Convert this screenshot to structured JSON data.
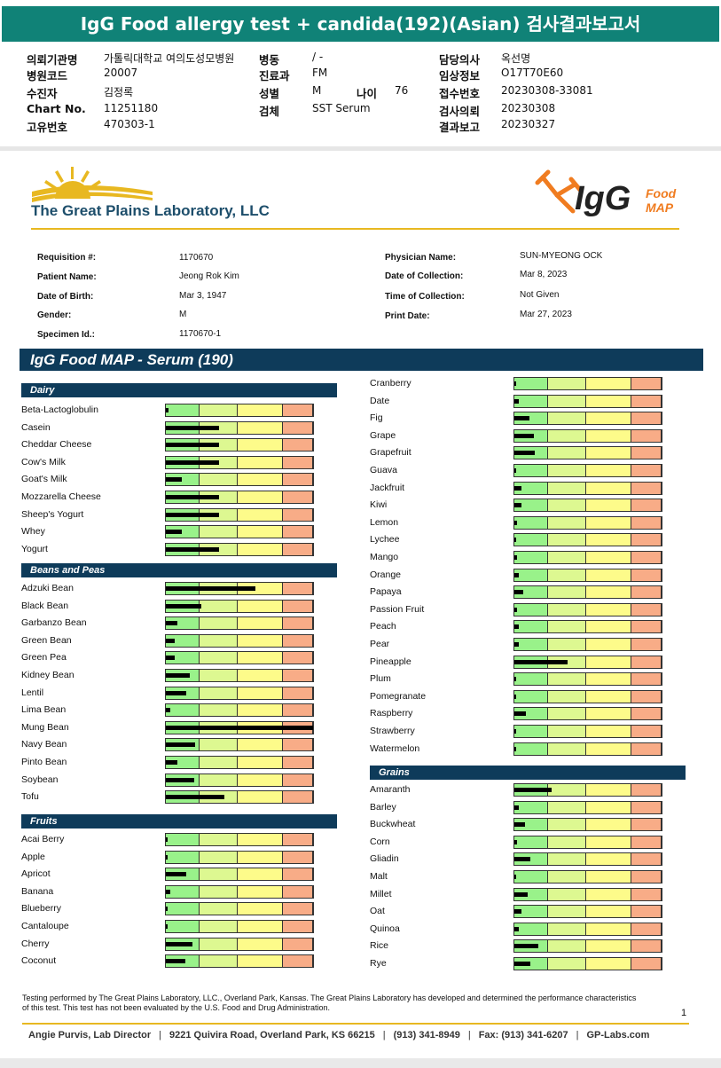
{
  "banner": "IgG Food allergy test + candida(192)(Asian) 검사결과보고서",
  "header": {
    "rows": [
      [
        {
          "l": "의뢰기관명",
          "v": "가톨릭대학교 여의도성모병원"
        },
        {
          "l": "병동",
          "v": "/ -"
        },
        {
          "l": "담당의사",
          "v": "옥선명"
        }
      ],
      [
        {
          "l": "병원코드",
          "v": "20007"
        },
        {
          "l": "진료과",
          "v": "FM"
        },
        {
          "l": "임상정보",
          "v": "O17T70E60"
        }
      ],
      [
        {
          "l": "수진자",
          "v": "김정록"
        },
        {
          "l": "성별",
          "v": "M"
        },
        {
          "l": "접수번호",
          "v": "20230308-33081"
        }
      ],
      [
        {
          "l": "Chart No.",
          "v": "11251180"
        },
        {
          "l": "검체",
          "v": "SST Serum"
        },
        {
          "l": "검사의뢰",
          "v": "20230308"
        }
      ],
      [
        {
          "l": "고유번호",
          "v": "470303-1"
        },
        {
          "l": "",
          "v": ""
        },
        {
          "l": "결과보고",
          "v": "20230327"
        }
      ]
    ],
    "age_label": "나이",
    "age_value": "76"
  },
  "lab_name": "The Great Plains Laboratory, LLC",
  "igg_logo": {
    "main": "IgG",
    "sub1": "Food",
    "sub2": "MAP"
  },
  "requisition": {
    "left": [
      {
        "l": "Requisition #:",
        "v": "1170670"
      },
      {
        "l": "Patient Name:",
        "v": "Jeong Rok Kim"
      },
      {
        "l": "Date of Birth:",
        "v": "Mar 3, 1947"
      },
      {
        "l": "Gender:",
        "v": "M"
      },
      {
        "l": "Specimen Id.:",
        "v": "1170670-1"
      }
    ],
    "right": [
      {
        "l": "Physician Name:",
        "v": "SUN-MYEONG OCK"
      },
      {
        "l": "Date of Collection:",
        "v": "Mar 8, 2023"
      },
      {
        "l": "Time of Collection:",
        "v": "Not Given"
      },
      {
        "l": "Print Date:",
        "v": "Mar 27, 2023"
      }
    ]
  },
  "section_title": "IgG Food MAP - Serum (190)",
  "categories": [
    {
      "name": "Dairy",
      "items": [
        {
          "name": "Beta-Lactoglobulin",
          "level": 0.02
        },
        {
          "name": "Casein",
          "level": 0.36
        },
        {
          "name": "Cheddar Cheese",
          "level": 0.36
        },
        {
          "name": "Cow's Milk",
          "level": 0.36
        },
        {
          "name": "Goat's Milk",
          "level": 0.11
        },
        {
          "name": "Mozzarella Cheese",
          "level": 0.36
        },
        {
          "name": "Sheep's Yogurt",
          "level": 0.36
        },
        {
          "name": "Whey",
          "level": 0.11
        },
        {
          "name": "Yogurt",
          "level": 0.36
        }
      ]
    },
    {
      "name": "Beans and Peas",
      "items": [
        {
          "name": "Adzuki Bean",
          "level": 0.61
        },
        {
          "name": "Black Bean",
          "level": 0.24
        },
        {
          "name": "Garbanzo Bean",
          "level": 0.08
        },
        {
          "name": "Green Bean",
          "level": 0.06
        },
        {
          "name": "Green Pea",
          "level": 0.06
        },
        {
          "name": "Kidney Bean",
          "level": 0.16
        },
        {
          "name": "Lentil",
          "level": 0.14
        },
        {
          "name": "Lima Bean",
          "level": 0.03
        },
        {
          "name": "Mung Bean",
          "level": 1.0
        },
        {
          "name": "Navy Bean",
          "level": 0.2
        },
        {
          "name": "Pinto Bean",
          "level": 0.08
        },
        {
          "name": "Soybean",
          "level": 0.19
        },
        {
          "name": "Tofu",
          "level": 0.4
        }
      ]
    },
    {
      "name": "Fruits",
      "items": [
        {
          "name": "Acai Berry",
          "level": 0.0
        },
        {
          "name": "Apple",
          "level": 0.0
        },
        {
          "name": "Apricot",
          "level": 0.14
        },
        {
          "name": "Banana",
          "level": 0.03
        },
        {
          "name": "Blueberry",
          "level": 0.0
        },
        {
          "name": "Cantaloupe",
          "level": 0.01
        },
        {
          "name": "Cherry",
          "level": 0.18
        },
        {
          "name": "Coconut",
          "level": 0.13
        },
        {
          "name": "Cranberry",
          "level": 0.0
        },
        {
          "name": "Date",
          "level": 0.03
        },
        {
          "name": "Fig",
          "level": 0.1
        },
        {
          "name": "Grape",
          "level": 0.13
        },
        {
          "name": "Grapefruit",
          "level": 0.14
        },
        {
          "name": "Guava",
          "level": 0.0
        },
        {
          "name": "Jackfruit",
          "level": 0.05
        },
        {
          "name": "Kiwi",
          "level": 0.05
        },
        {
          "name": "Lemon",
          "level": 0.02
        },
        {
          "name": "Lychee",
          "level": 0.01
        },
        {
          "name": "Mango",
          "level": 0.02
        },
        {
          "name": "Orange",
          "level": 0.03
        },
        {
          "name": "Papaya",
          "level": 0.06
        },
        {
          "name": "Passion Fruit",
          "level": 0.02
        },
        {
          "name": "Peach",
          "level": 0.03
        },
        {
          "name": "Pear",
          "level": 0.03
        },
        {
          "name": "Pineapple",
          "level": 0.36
        },
        {
          "name": "Plum",
          "level": 0.0
        },
        {
          "name": "Pomegranate",
          "level": 0.0
        },
        {
          "name": "Raspberry",
          "level": 0.08
        },
        {
          "name": "Strawberry",
          "level": 0.0
        },
        {
          "name": "Watermelon",
          "level": 0.01
        }
      ]
    },
    {
      "name": "Grains",
      "items": [
        {
          "name": "Amaranth",
          "level": 0.25
        },
        {
          "name": "Barley",
          "level": 0.03
        },
        {
          "name": "Buckwheat",
          "level": 0.07
        },
        {
          "name": "Corn",
          "level": 0.02
        },
        {
          "name": "Gliadin",
          "level": 0.11
        },
        {
          "name": "Malt",
          "level": 0.0
        },
        {
          "name": "Millet",
          "level": 0.09
        },
        {
          "name": "Oat",
          "level": 0.05
        },
        {
          "name": "Quinoa",
          "level": 0.03
        },
        {
          "name": "Rice",
          "level": 0.16
        },
        {
          "name": "Rye",
          "level": 0.11
        }
      ]
    }
  ],
  "footnote": "Testing performed by The Great Plains Laboratory, LLC., Overland Park, Kansas.  The Great Plains Laboratory has developed and determined the performance characteristics of this test.  This test has not been evaluated by the U.S. Food and Drug Administration.",
  "page_number": "1",
  "footer": [
    "Angie Purvis, Lab Director",
    "9221 Quivira Road, Overland Park, KS 66215",
    "(913) 341-8949",
    "Fax: (913) 341-6207",
    "GP-Labs.com"
  ],
  "colors": {
    "banner": "#108277",
    "band": "#0e3b5a",
    "gold": "#e8b821"
  }
}
